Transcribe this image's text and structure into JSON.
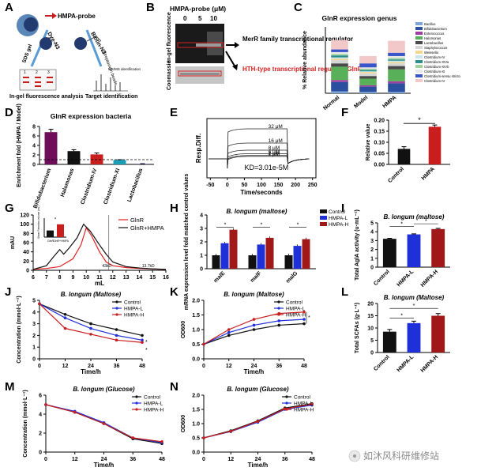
{
  "panel_letters": [
    "A",
    "B",
    "C",
    "D",
    "E",
    "F",
    "G",
    "H",
    "I",
    "J",
    "K",
    "L",
    "M",
    "N"
  ],
  "panel_a": {
    "probe_label": "HMPA-probe",
    "step1": "Dye-N3",
    "step2": "Biotin-N3",
    "gel_label": "SDS gel",
    "streptavidin_label": "Streptavidin beads",
    "ms_label": "MS/MS identification",
    "lane_numbers": [
      "1",
      "2",
      "3"
    ],
    "caption_left": "In-gel fluorescence analysis",
    "caption_right": "Target identification"
  },
  "panel_b": {
    "title": "HMPA-probe (μM)",
    "concentrations": [
      "0",
      "5",
      "10"
    ],
    "ylabel_top": "In-gel fluorescence",
    "ylabel_bottom": "Coomassie",
    "label1": "MerR family transcriptional regulator",
    "label2": "HTH-type transcriptional regulator GlnR",
    "label2_color": "#d42020"
  },
  "chart_data": [
    {
      "panel": "C",
      "type": "bar",
      "stacked": true,
      "title": "GlnR expression genus",
      "ylabel": "% Relative abundance",
      "categories": [
        "Normal",
        "Model",
        "HMPA"
      ],
      "legend": [
        "Bacillus",
        "Bifidobacterium",
        "Enterococcus",
        "Halomonas",
        "Lactobacillus",
        "Staphylococcus",
        "Weissella",
        "Clostridium-IV",
        "Clostridium-XIVa",
        "Clostridium-XIVb",
        "Clostridium-XI",
        "Clostridium-sensu stricto",
        "Clostridium-IV"
      ],
      "colors": [
        "#7fa4d8",
        "#2a4f9e",
        "#a03ea0",
        "#58b158",
        "#4a4a4a",
        "#d6d6d6",
        "#f2d98e",
        "#c7e6ee",
        "#2f8f8f",
        "#9ed29e",
        "#e8e8e8",
        "#3a55c8",
        "#f3c8c8"
      ],
      "series_values": [
        [
          3,
          2,
          2
        ],
        [
          14,
          8,
          13
        ],
        [
          3,
          2,
          3
        ],
        [
          20,
          10,
          18
        ],
        [
          5,
          4,
          5
        ],
        [
          5,
          4,
          4
        ],
        [
          2,
          2,
          2
        ],
        [
          2,
          1,
          2
        ],
        [
          3,
          2,
          2
        ],
        [
          2,
          2,
          2
        ],
        [
          3,
          2,
          3
        ],
        [
          4,
          6,
          5
        ],
        [
          14,
          11,
          18
        ]
      ],
      "ylim": [
        0,
        100
      ]
    },
    {
      "panel": "D",
      "type": "bar",
      "title": "GlnR expression bacteria",
      "ylabel": "Enrichment fold (HMPA / Model)",
      "categories": [
        "Bifidobacterium",
        "Halomonas",
        "Clostridium-IV",
        "Clostridium-XI",
        "Lactobacillus"
      ],
      "values": [
        6.8,
        2.8,
        2.1,
        0.9,
        0.1
      ],
      "errors": [
        0.6,
        0.3,
        0.3,
        0.1,
        0.05
      ],
      "colors": [
        "#6e0e5a",
        "#111111",
        "#c81e1e",
        "#19a0b8",
        "#3a3a8c"
      ],
      "yticks": [
        0,
        2,
        4,
        6,
        8
      ],
      "ylim": [
        0,
        8
      ],
      "reference_line": 1
    },
    {
      "panel": "E",
      "type": "line",
      "title": "",
      "xlabel": "Time/seconds",
      "ylabel": "Resp.Diff.",
      "xticks": [
        -50,
        0,
        50,
        100,
        150,
        200,
        250
      ],
      "series": [
        {
          "name": "32 μM",
          "plateau": 32
        },
        {
          "name": "16 μM",
          "plateau": 16
        },
        {
          "name": "8 μM",
          "plateau": 8
        },
        {
          "name": "4 μM",
          "plateau": 4
        },
        {
          "name": "2 μM",
          "plateau": 2
        },
        {
          "name": "1 μM",
          "plateau": 1
        }
      ],
      "annotation": "KD=3.01e-5M"
    },
    {
      "panel": "F",
      "type": "bar",
      "ylabel": "Relative value",
      "categories": [
        "Control",
        "HMPA"
      ],
      "values": [
        0.07,
        0.17
      ],
      "errors": [
        0.01,
        0.008
      ],
      "colors": [
        "#111111",
        "#c81e1e"
      ],
      "yticks": [
        0.0,
        0.05,
        0.1,
        0.15,
        0.2
      ],
      "ylim": [
        0,
        0.2
      ],
      "significance": "*"
    },
    {
      "panel": "G",
      "type": "line",
      "xlabel": "mL",
      "ylabel": "mAU",
      "xticks": [
        6,
        7,
        8,
        9,
        10,
        11,
        12,
        13,
        14,
        15,
        16
      ],
      "yticks": [
        0,
        20,
        40,
        60,
        80,
        100,
        120
      ],
      "series": [
        {
          "name": "GlnR",
          "color": "#e02020"
        },
        {
          "name": "GlnR+HMPA",
          "color": "#111111"
        }
      ],
      "annotations": [
        "43kD",
        "13.7kD"
      ],
      "inset": {
        "ylabel": "Shear Retention volume (mL)",
        "categories": [
          "GlnR",
          "GlnR+HMPA"
        ],
        "values": [
          9.4,
          10.7
        ],
        "significance": "*"
      }
    },
    {
      "panel": "H",
      "type": "bar",
      "title": "B. longum (maltose)",
      "ylabel": "mRNA expression level fold matched control values",
      "categories": [
        "malE",
        "malF",
        "malG"
      ],
      "series": [
        {
          "name": "Control",
          "values": [
            1.0,
            1.0,
            1.0
          ],
          "color": "#111111"
        },
        {
          "name": "HMPA-L",
          "values": [
            1.9,
            1.8,
            1.7
          ],
          "color": "#2030d8"
        },
        {
          "name": "HMPA-H",
          "values": [
            2.9,
            2.3,
            2.2
          ],
          "color": "#a01818"
        }
      ],
      "yticks": [
        0,
        1,
        2,
        3,
        4
      ],
      "ylim": [
        0,
        4
      ]
    },
    {
      "panel": "I",
      "type": "bar",
      "title": "B. longum (maltose)",
      "ylabel": "Total AglA activity (u·mL⁻¹)",
      "categories": [
        "Control",
        "HMPA-L",
        "HMPA-H"
      ],
      "values": [
        3.2,
        3.7,
        4.3
      ],
      "errors": [
        0.06,
        0.06,
        0.08
      ],
      "colors": [
        "#111111",
        "#2030d8",
        "#a01818"
      ],
      "yticks": [
        0,
        1,
        2,
        3,
        4,
        5
      ],
      "ylim": [
        0,
        5
      ]
    },
    {
      "panel": "J",
      "type": "line",
      "title": "B. longum (Maltose)",
      "xlabel": "Time/h",
      "ylabel": "Concentration (mmol·L⁻¹)",
      "x": [
        0,
        12,
        24,
        36,
        48
      ],
      "xticks": [
        0,
        12,
        24,
        36,
        48
      ],
      "yticks": [
        0,
        1,
        2,
        3,
        4,
        5
      ],
      "ylim": [
        0,
        5
      ],
      "series": [
        {
          "name": "Control",
          "values": [
            4.7,
            3.8,
            3.0,
            2.5,
            2.0
          ],
          "color": "#111111"
        },
        {
          "name": "HMPA-L",
          "values": [
            4.7,
            3.5,
            2.6,
            2.0,
            1.6
          ],
          "color": "#2030d8"
        },
        {
          "name": "HMPA-H",
          "values": [
            4.7,
            2.6,
            2.1,
            1.6,
            1.4
          ],
          "color": "#c81e1e"
        }
      ]
    },
    {
      "panel": "K",
      "type": "line",
      "title": "B. longum (Maltose)",
      "xlabel": "Time/h",
      "ylabel": "OD600",
      "x": [
        0,
        12,
        24,
        36,
        48
      ],
      "xticks": [
        0,
        12,
        24,
        36,
        48
      ],
      "yticks": [
        0.0,
        0.5,
        1.0,
        1.5,
        2.0
      ],
      "ylim": [
        0,
        2
      ],
      "series": [
        {
          "name": "Control",
          "values": [
            0.5,
            0.8,
            1.0,
            1.15,
            1.2
          ],
          "color": "#111111"
        },
        {
          "name": "HMPA-L",
          "values": [
            0.5,
            0.9,
            1.15,
            1.3,
            1.35
          ],
          "color": "#2030d8"
        },
        {
          "name": "HMPA-H",
          "values": [
            0.5,
            1.0,
            1.35,
            1.55,
            1.6
          ],
          "color": "#c81e1e"
        }
      ]
    },
    {
      "panel": "L",
      "type": "bar",
      "title": "B. longum (Maltose)",
      "ylabel": "Total SCFAs (g·L⁻¹)",
      "categories": [
        "Control",
        "HMPA-L",
        "HMPA-H"
      ],
      "values": [
        8.5,
        12.0,
        15.0
      ],
      "errors": [
        0.9,
        0.8,
        0.9
      ],
      "colors": [
        "#111111",
        "#2030d8",
        "#a01818"
      ],
      "yticks": [
        0,
        5,
        10,
        15,
        20
      ],
      "ylim": [
        0,
        20
      ]
    },
    {
      "panel": "M",
      "type": "line",
      "title": "B. longum (Glucose)",
      "xlabel": "Time/h",
      "ylabel": "Concentration (mmol·L⁻¹)",
      "x": [
        0,
        12,
        24,
        36,
        48
      ],
      "xticks": [
        0,
        12,
        24,
        36,
        48
      ],
      "yticks": [
        0,
        2,
        4,
        6
      ],
      "ylim": [
        0,
        6
      ],
      "series": [
        {
          "name": "Control",
          "values": [
            5.0,
            4.2,
            3.0,
            1.4,
            0.9
          ],
          "color": "#111111"
        },
        {
          "name": "HMPA-L",
          "values": [
            5.0,
            4.3,
            3.1,
            1.5,
            1.0
          ],
          "color": "#2030d8"
        },
        {
          "name": "HMPA-H",
          "values": [
            5.0,
            4.2,
            3.0,
            1.5,
            1.1
          ],
          "color": "#c81e1e"
        }
      ]
    },
    {
      "panel": "N",
      "type": "line",
      "title": "B. longum (Glucose)",
      "xlabel": "Time/h",
      "ylabel": "OD600",
      "x": [
        0,
        12,
        24,
        36,
        48
      ],
      "xticks": [
        0,
        12,
        24,
        36,
        48
      ],
      "yticks": [
        0.0,
        0.5,
        1.0,
        1.5,
        2.0
      ],
      "ylim": [
        0,
        2
      ],
      "series": [
        {
          "name": "Control",
          "values": [
            0.5,
            0.75,
            1.1,
            1.55,
            1.7
          ],
          "color": "#111111"
        },
        {
          "name": "HMPA-L",
          "values": [
            0.5,
            0.72,
            1.05,
            1.5,
            1.65
          ],
          "color": "#2030d8"
        },
        {
          "name": "HMPA-H",
          "values": [
            0.5,
            0.73,
            1.08,
            1.52,
            1.68
          ],
          "color": "#c81e1e"
        }
      ]
    }
  ],
  "watermark": "如沐风科研维修站"
}
